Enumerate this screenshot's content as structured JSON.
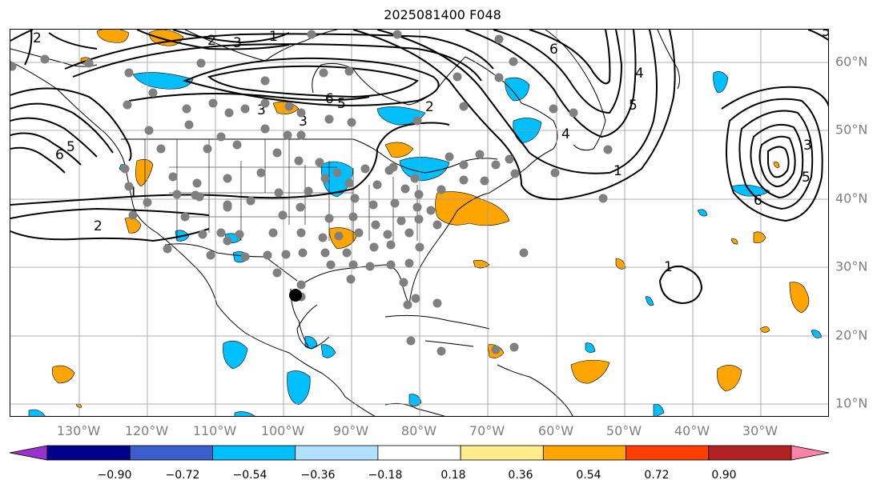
{
  "title": "2025081400 F048",
  "map": {
    "lon_range": [
      -140,
      -20
    ],
    "lat_range": [
      8,
      65
    ],
    "gridlines": true,
    "latitude_labels": [
      "60°N",
      "50°N",
      "40°N",
      "30°N",
      "20°N",
      "10°N"
    ],
    "longitude_labels": [
      "130°W",
      "120°W",
      "110°W",
      "100°W",
      "90°W",
      "80°W",
      "70°W",
      "60°W",
      "50°W",
      "40°W",
      "30°W"
    ],
    "contour_color": "#000000",
    "contour_labels": [
      "2",
      "1",
      "3",
      "6",
      "5",
      "6",
      "4",
      "5",
      "6",
      "5",
      "4",
      "3",
      "1",
      "1",
      "3",
      "5",
      "6",
      "2",
      "3",
      "2",
      "1",
      "5",
      "2"
    ],
    "highlighted_point": {
      "lon": -97.5,
      "lat": 26.2,
      "color": "#000000"
    },
    "station_marker_color": "#808080"
  },
  "colorbar": {
    "colors": [
      "#9932cc",
      "#00008b",
      "#3a5fcd",
      "#00bfff",
      "#b0e2ff",
      "#ffffff",
      "#ffec8b",
      "#ffa500",
      "#ff3e00",
      "#b22222",
      "#ff82ab"
    ],
    "tick_labels": [
      "−0.90",
      "−0.72",
      "−0.54",
      "−0.36",
      "−0.18",
      "0.18",
      "0.36",
      "0.54",
      "0.72",
      "0.90"
    ],
    "extend": "both"
  }
}
